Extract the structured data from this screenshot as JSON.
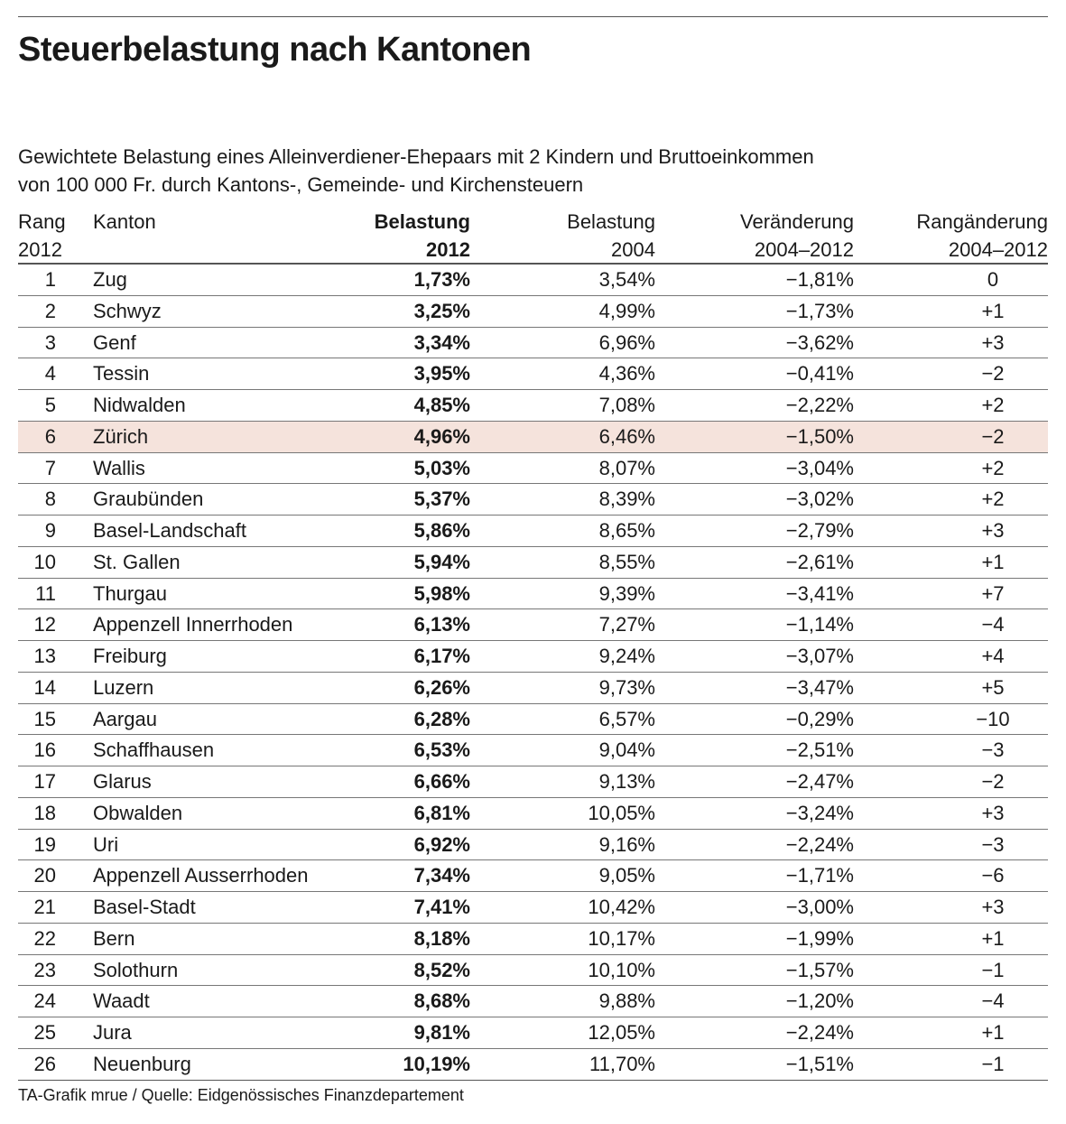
{
  "title": "Steuerbelastung nach Kantonen",
  "subtitle": [
    "Gewichtete Belastung eines Alleinverdiener-Ehepaars mit 2 Kindern und Bruttoeinkommen",
    "von 100 000 Fr. durch Kantons-, Gemeinde- und Kirchensteuern"
  ],
  "footer": "TA-Grafik mrue / Quelle: Eidgenössisches Finanzdepartement",
  "colors": {
    "highlight": "#f5e3dc",
    "rule": "#555555"
  },
  "chart_data": {
    "type": "table",
    "title": "Steuerbelastung nach Kantonen",
    "columns": [
      [
        "Rang",
        "2012"
      ],
      [
        "Kanton",
        ""
      ],
      [
        "Belastung",
        "2012"
      ],
      [
        "Belastung",
        "2004"
      ],
      [
        "Veränderung",
        "2004–2012"
      ],
      [
        "Rangänderung",
        "2004–2012"
      ]
    ],
    "highlighted_row": "Zürich",
    "rows": [
      [
        "1",
        "Zug",
        "1,73%",
        "3,54%",
        "−1,81%",
        "0"
      ],
      [
        "2",
        "Schwyz",
        "3,25%",
        "4,99%",
        "−1,73%",
        "+1"
      ],
      [
        "3",
        "Genf",
        "3,34%",
        "6,96%",
        "−3,62%",
        "+3"
      ],
      [
        "4",
        "Tessin",
        "3,95%",
        "4,36%",
        "−0,41%",
        "−2"
      ],
      [
        "5",
        "Nidwalden",
        "4,85%",
        "7,08%",
        "−2,22%",
        "+2"
      ],
      [
        "6",
        "Zürich",
        "4,96%",
        "6,46%",
        "−1,50%",
        "−2"
      ],
      [
        "7",
        "Wallis",
        "5,03%",
        "8,07%",
        "−3,04%",
        "+2"
      ],
      [
        "8",
        "Graubünden",
        "5,37%",
        "8,39%",
        "−3,02%",
        "+2"
      ],
      [
        "9",
        "Basel-Landschaft",
        "5,86%",
        "8,65%",
        "−2,79%",
        "+3"
      ],
      [
        "10",
        "St. Gallen",
        "5,94%",
        "8,55%",
        "−2,61%",
        "+1"
      ],
      [
        "11",
        "Thurgau",
        "5,98%",
        "9,39%",
        "−3,41%",
        "+7"
      ],
      [
        "12",
        "Appenzell Innerrhoden",
        "6,13%",
        "7,27%",
        "−1,14%",
        "−4"
      ],
      [
        "13",
        "Freiburg",
        "6,17%",
        "9,24%",
        "−3,07%",
        "+4"
      ],
      [
        "14",
        "Luzern",
        "6,26%",
        "9,73%",
        "−3,47%",
        "+5"
      ],
      [
        "15",
        "Aargau",
        "6,28%",
        "6,57%",
        "−0,29%",
        "−10"
      ],
      [
        "16",
        "Schaffhausen",
        "6,53%",
        "9,04%",
        "−2,51%",
        "−3"
      ],
      [
        "17",
        "Glarus",
        "6,66%",
        "9,13%",
        "−2,47%",
        "−2"
      ],
      [
        "18",
        "Obwalden",
        "6,81%",
        "10,05%",
        "−3,24%",
        "+3"
      ],
      [
        "19",
        "Uri",
        "6,92%",
        "9,16%",
        "−2,24%",
        "−3"
      ],
      [
        "20",
        "Appenzell Ausserrhoden",
        "7,34%",
        "9,05%",
        "−1,71%",
        "−6"
      ],
      [
        "21",
        "Basel-Stadt",
        "7,41%",
        "10,42%",
        "−3,00%",
        "+3"
      ],
      [
        "22",
        "Bern",
        "8,18%",
        "10,17%",
        "−1,99%",
        "+1"
      ],
      [
        "23",
        "Solothurn",
        "8,52%",
        "10,10%",
        "−1,57%",
        "−1"
      ],
      [
        "24",
        "Waadt",
        "8,68%",
        "9,88%",
        "−1,20%",
        "−4"
      ],
      [
        "25",
        "Jura",
        "9,81%",
        "12,05%",
        "−2,24%",
        "+1"
      ],
      [
        "26",
        "Neuenburg",
        "10,19%",
        "11,70%",
        "−1,51%",
        "−1"
      ]
    ]
  }
}
